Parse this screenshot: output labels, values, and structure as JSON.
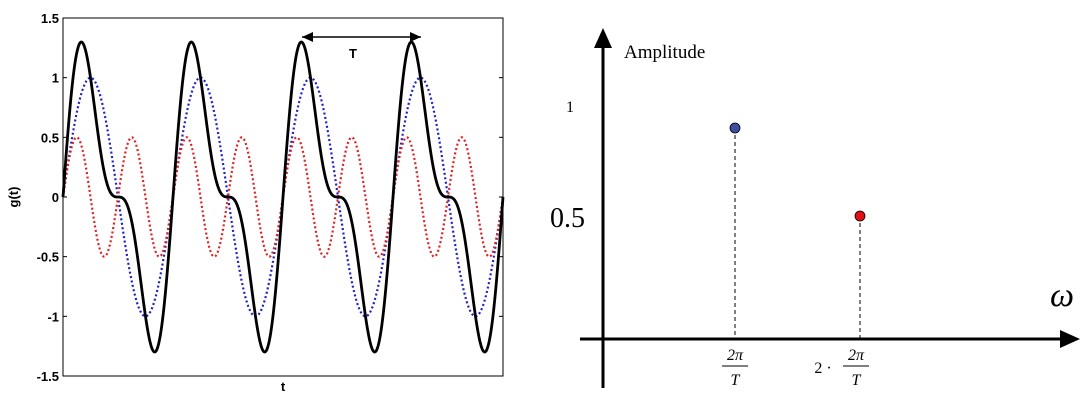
{
  "chart_data": [
    {
      "type": "line",
      "xlabel": "t",
      "ylabel": "g(t)",
      "ylim": [
        -1.5,
        1.5
      ],
      "yticks": [
        "-1.5",
        "-1",
        "-0.5",
        "0",
        "0.5",
        "1",
        "1.5"
      ],
      "grid": false,
      "period_annotation": "T",
      "series": [
        {
          "style": "solid",
          "color": "#000000",
          "formula": "sin(wt) + 0.5 sin(2wt)"
        },
        {
          "style": "dotted",
          "color": "#1f1fcc",
          "formula": "sin(wt)",
          "amplitude": 1
        },
        {
          "style": "dotted",
          "color": "#dd2222",
          "formula": "0.5 sin(2wt)",
          "amplitude": 0.5
        }
      ],
      "periods_shown": 4
    },
    {
      "type": "scatter",
      "ylabel": "Amplitude",
      "xlabel": "ω",
      "yticks": [
        "1",
        "0.5"
      ],
      "xticks": [
        {
          "prefix": "",
          "numerator": "2π",
          "denominator": "T"
        },
        {
          "prefix": "2 ·",
          "numerator": "2π",
          "denominator": "T"
        }
      ],
      "points": [
        {
          "x": 1,
          "y": 1,
          "color": "#3a4fa0"
        },
        {
          "x": 2,
          "y": 0.5,
          "color": "#e01010"
        }
      ]
    }
  ]
}
